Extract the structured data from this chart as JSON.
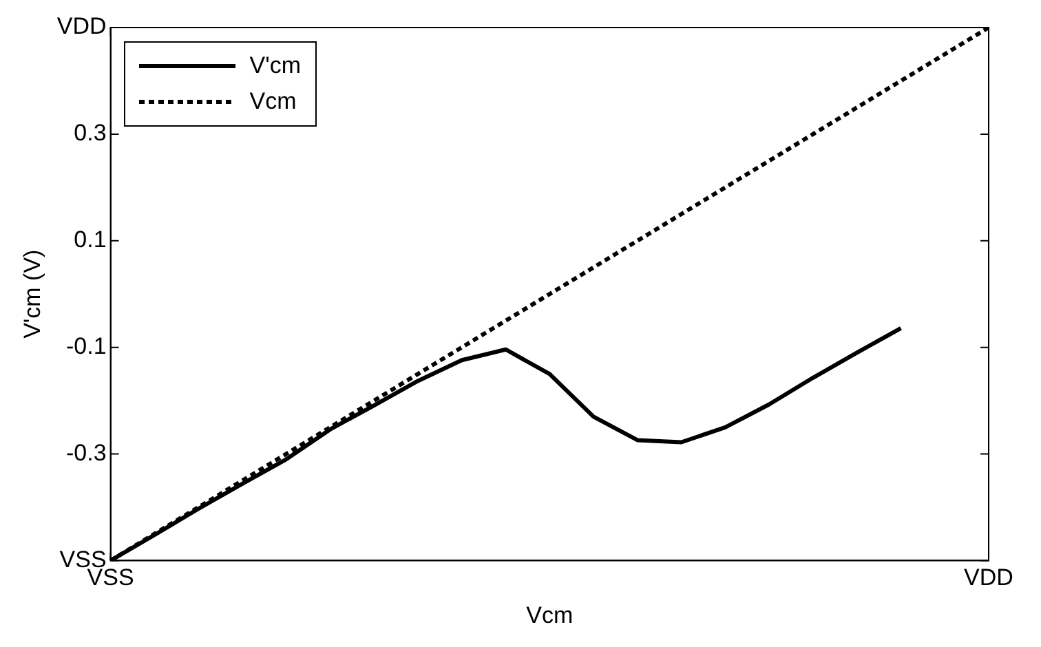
{
  "chart_data": {
    "type": "line",
    "xlabel": "Vcm",
    "ylabel": "V'cm (V)",
    "legend": "top left",
    "grid": false,
    "marker": "none",
    "categories": [
      "VSS",
      null,
      null,
      null,
      null,
      null,
      null,
      null,
      null,
      null,
      null,
      null,
      null,
      null,
      null,
      null,
      null,
      null,
      null,
      null,
      "VDD"
    ],
    "ylim": [
      -0.5,
      0.5
    ],
    "yticks": [
      {
        "value": -0.5,
        "label": "VSS"
      },
      -0.3,
      -0.1,
      0.1,
      0.3,
      {
        "value": 0.5,
        "label": "VDD"
      }
    ],
    "series": [
      {
        "name": "V'cm",
        "color": "#000000",
        "line_style": "solid",
        "values": [
          -0.5,
          -0.452,
          -0.403,
          -0.356,
          -0.31,
          -0.254,
          -0.209,
          -0.163,
          -0.124,
          -0.104,
          -0.15,
          -0.23,
          -0.274,
          -0.278,
          -0.25,
          -0.207,
          -0.157,
          -0.11,
          -0.064,
          null,
          null
        ]
      },
      {
        "name": "Vcm",
        "color": "#000000",
        "line_style": "dotted",
        "values": [
          -0.5,
          -0.45,
          -0.4,
          -0.35,
          -0.3,
          -0.25,
          -0.2,
          -0.15,
          -0.1,
          -0.05,
          0,
          0.05,
          0.1,
          0.15,
          0.2,
          0.25,
          0.3,
          0.35,
          0.4,
          0.45,
          0.5
        ]
      }
    ]
  }
}
